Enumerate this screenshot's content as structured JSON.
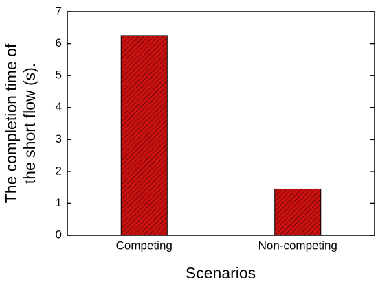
{
  "chart_data": {
    "type": "bar",
    "xlabel": "Scenarios",
    "ylabel": [
      "The completion time of",
      "the short flow (s)."
    ],
    "categories": [
      "Competing",
      "Non-competing"
    ],
    "values": [
      6.25,
      1.45
    ],
    "color": "#cc1111",
    "ylim": [
      0,
      7
    ],
    "yticks": [
      0,
      1,
      2,
      3,
      4,
      5,
      6,
      7
    ],
    "grid": false
  }
}
